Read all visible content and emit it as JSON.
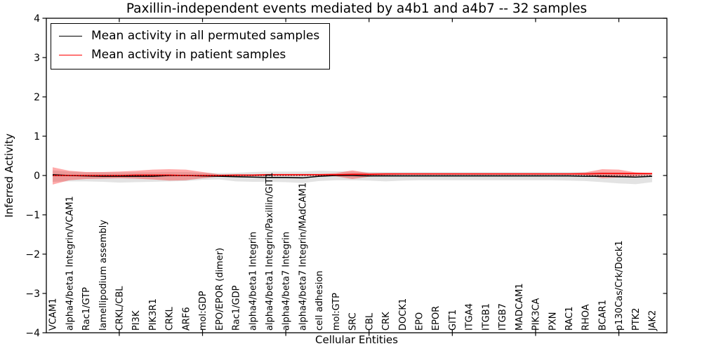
{
  "title": "Paxillin-independent events mediated by a4b1 and a4b7 -- 32 samples",
  "axes": {
    "ylabel": "Inferred Activity",
    "xlabel": "Cellular Entities",
    "yticks": [
      4,
      3,
      2,
      1,
      0,
      -1,
      -2,
      -3,
      -4
    ],
    "ytick_labels": [
      "4",
      "3",
      "2",
      "1",
      "0",
      "−1",
      "−2",
      "−3",
      "−4"
    ],
    "ylim": [
      -4,
      4
    ]
  },
  "legend": {
    "position": "upper left",
    "entries": [
      {
        "label": "Mean activity in all permuted samples",
        "color": "#000000"
      },
      {
        "label": "Mean activity in patient samples",
        "color": "#ff0000"
      }
    ]
  },
  "chart_data": {
    "type": "line",
    "title": "Paxillin-independent events mediated by a4b1 and a4b7 -- 32 samples",
    "xlabel": "Cellular Entities",
    "ylabel": "Inferred Activity",
    "ylim": [
      -4,
      4
    ],
    "grid": false,
    "legend_position": "upper left",
    "categories": [
      "VCAM1",
      "alpha4/beta1 Integrin/VCAM1",
      "Rac1/GTP",
      "lamellipodium assembly",
      "CRKL/CBL",
      "PI3K",
      "PIK3R1",
      "CRKL",
      "ARF6",
      "mol:GDP",
      "EPO/EPOR (dimer)",
      "Rac1/GDP",
      "alpha4/beta1 Integrin",
      "alpha4/beta1 Integrin/Paxillin/GIT1",
      "alpha4/beta7 Integrin",
      "alpha4/beta7 Integrin/MAdCAM1",
      "cell adhesion",
      "mol:GTP",
      "SRC",
      "CBL",
      "CRK",
      "DOCK1",
      "EPO",
      "EPOR",
      "GIT1",
      "ITGA4",
      "ITGB1",
      "ITGB7",
      "MADCAM1",
      "PIK3CA",
      "PXN",
      "RAC1",
      "RHOA",
      "BCAR1",
      "p130Cas/Crk/Dock1",
      "PTK2",
      "JAK2"
    ],
    "xtick_indices": [
      4,
      9,
      14,
      19,
      24,
      29,
      34
    ],
    "series": [
      {
        "name": "Mean activity in all permuted samples",
        "color": "#000000",
        "style": "solid",
        "values": [
          0.02,
          0.0,
          -0.01,
          -0.02,
          -0.02,
          -0.02,
          -0.02,
          0.0,
          0.0,
          -0.01,
          -0.02,
          -0.03,
          -0.04,
          -0.05,
          -0.05,
          -0.06,
          -0.02,
          0.0,
          0.0,
          -0.01,
          -0.01,
          -0.01,
          -0.01,
          -0.01,
          -0.01,
          -0.01,
          -0.01,
          -0.01,
          -0.01,
          -0.01,
          -0.01,
          -0.01,
          -0.02,
          -0.02,
          -0.03,
          -0.04,
          -0.02
        ]
      },
      {
        "name": "Mean activity in patient samples",
        "color": "#ff0000",
        "style": "solid",
        "values": [
          0.0,
          0.0,
          0.0,
          0.0,
          0.0,
          0.01,
          0.01,
          0.01,
          0.0,
          0.0,
          0.0,
          0.01,
          0.01,
          0.02,
          0.02,
          0.02,
          0.02,
          0.02,
          0.03,
          0.03,
          0.04,
          0.04,
          0.04,
          0.04,
          0.04,
          0.04,
          0.04,
          0.04,
          0.04,
          0.04,
          0.04,
          0.04,
          0.04,
          0.05,
          0.05,
          0.05,
          0.05
        ]
      },
      {
        "name": "zero-reference",
        "color": "#000000",
        "style": "dotted",
        "values": [
          0,
          0,
          0,
          0,
          0,
          0,
          0,
          0,
          0,
          0,
          0,
          0,
          0,
          0,
          0,
          0,
          0,
          0,
          0,
          0,
          0,
          0,
          0,
          0,
          0,
          0,
          0,
          0,
          0,
          0,
          0,
          0,
          0,
          0,
          0,
          0,
          0
        ]
      }
    ],
    "bands": [
      {
        "name": "permuted-samples-range",
        "color": "rgba(0,0,0,0.11)",
        "upper": [
          0.13,
          0.1,
          0.08,
          0.08,
          0.08,
          0.08,
          0.08,
          0.09,
          0.09,
          0.07,
          0.06,
          0.07,
          0.09,
          0.1,
          0.1,
          0.1,
          0.12,
          0.11,
          0.1,
          0.09,
          0.09,
          0.09,
          0.09,
          0.09,
          0.09,
          0.09,
          0.09,
          0.09,
          0.09,
          0.09,
          0.09,
          0.09,
          0.09,
          0.09,
          0.08,
          0.07,
          0.06
        ],
        "lower": [
          -0.16,
          -0.15,
          -0.15,
          -0.16,
          -0.18,
          -0.17,
          -0.16,
          -0.15,
          -0.14,
          -0.11,
          -0.1,
          -0.15,
          -0.16,
          -0.16,
          -0.17,
          -0.19,
          -0.14,
          -0.12,
          -0.12,
          -0.13,
          -0.15,
          -0.13,
          -0.12,
          -0.12,
          -0.12,
          -0.12,
          -0.12,
          -0.12,
          -0.12,
          -0.12,
          -0.12,
          -0.13,
          -0.14,
          -0.17,
          -0.2,
          -0.22,
          -0.17
        ]
      },
      {
        "name": "patient-samples-range",
        "color": "rgba(255,0,0,0.33)",
        "upper": [
          0.21,
          0.12,
          0.09,
          0.09,
          0.1,
          0.12,
          0.15,
          0.16,
          0.15,
          0.09,
          0.03,
          0.03,
          0.03,
          0.04,
          0.04,
          0.04,
          0.04,
          0.06,
          0.13,
          0.06,
          0.06,
          0.06,
          0.06,
          0.06,
          0.06,
          0.06,
          0.06,
          0.06,
          0.06,
          0.06,
          0.06,
          0.06,
          0.08,
          0.16,
          0.15,
          0.08,
          0.06
        ],
        "lower": [
          -0.23,
          -0.12,
          -0.09,
          -0.08,
          -0.07,
          -0.08,
          -0.1,
          -0.13,
          -0.12,
          -0.07,
          -0.03,
          -0.02,
          -0.02,
          -0.01,
          -0.01,
          -0.01,
          -0.01,
          -0.02,
          -0.09,
          -0.03,
          0.01,
          0.02,
          0.02,
          0.02,
          0.02,
          0.02,
          0.02,
          0.02,
          0.02,
          0.02,
          0.02,
          0.02,
          0.01,
          -0.07,
          -0.05,
          -0.02,
          0.01
        ]
      }
    ]
  }
}
